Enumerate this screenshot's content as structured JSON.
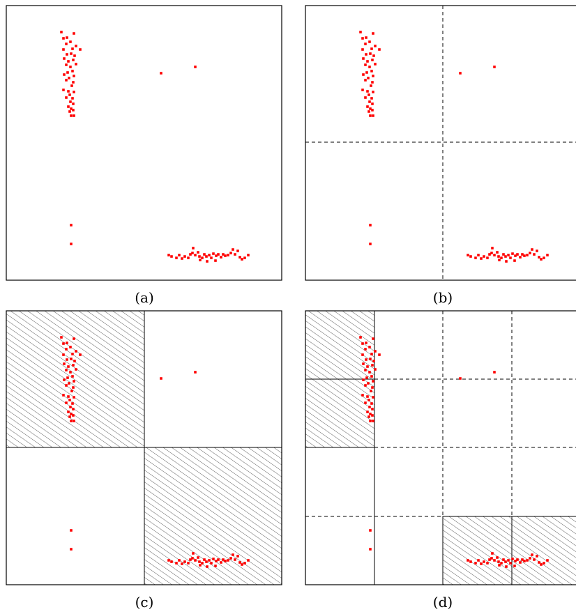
{
  "figure": {
    "panels": [
      {
        "id": "a",
        "caption": "(a)"
      },
      {
        "id": "b",
        "caption": "(b)"
      },
      {
        "id": "c",
        "caption": "(c)"
      },
      {
        "id": "d",
        "caption": "(d)"
      }
    ],
    "point_color": "#ff0000",
    "hatch_color": "#333333",
    "frame_color": "#000000"
  }
}
